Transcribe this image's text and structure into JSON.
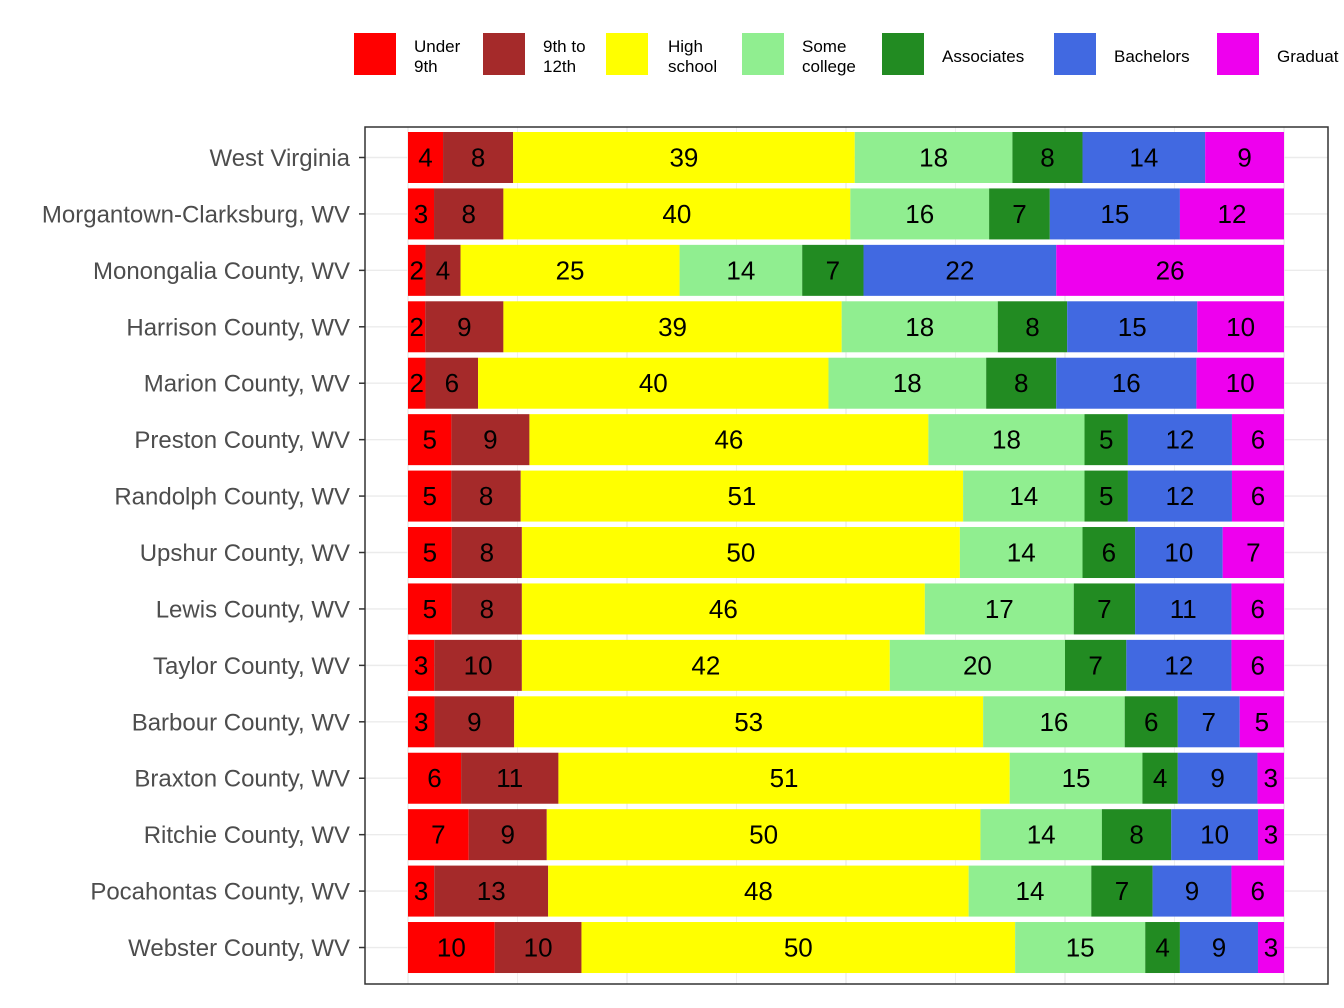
{
  "chart_data": {
    "type": "bar",
    "orientation": "horizontal",
    "stacked": true,
    "grid": true,
    "legend_position": "top",
    "categories": [
      "West Virginia",
      "Morgantown-Clarksburg, WV",
      "Monongalia County, WV",
      "Harrison County, WV",
      "Marion County, WV",
      "Preston County, WV",
      "Randolph County, WV",
      "Upshur County, WV",
      "Lewis County, WV",
      "Taylor County, WV",
      "Barbour County, WV",
      "Braxton County, WV",
      "Ritchie County, WV",
      "Pocahontas County, WV",
      "Webster County, WV"
    ],
    "series": [
      {
        "name": "Under 9th",
        "label_lines": [
          "Under",
          "9th"
        ],
        "color": "#ff0000",
        "values": [
          4,
          3,
          2,
          2,
          2,
          5,
          5,
          5,
          5,
          3,
          3,
          6,
          7,
          3,
          10
        ]
      },
      {
        "name": "9th to 12th",
        "label_lines": [
          "9th to",
          "12th"
        ],
        "color": "#a52a2a",
        "values": [
          8,
          8,
          4,
          9,
          6,
          9,
          8,
          8,
          8,
          10,
          9,
          11,
          9,
          13,
          10
        ]
      },
      {
        "name": "High school",
        "label_lines": [
          "High",
          "school"
        ],
        "color": "#ffff00",
        "values": [
          39,
          40,
          25,
          39,
          40,
          46,
          51,
          50,
          46,
          42,
          53,
          51,
          50,
          48,
          50
        ]
      },
      {
        "name": "Some college",
        "label_lines": [
          "Some",
          "college"
        ],
        "color": "#90ee90",
        "values": [
          18,
          16,
          14,
          18,
          18,
          18,
          14,
          14,
          17,
          20,
          16,
          15,
          14,
          14,
          15
        ]
      },
      {
        "name": "Associates",
        "label_lines": [
          "Associates"
        ],
        "color": "#228b22",
        "values": [
          8,
          7,
          7,
          8,
          8,
          5,
          5,
          6,
          7,
          7,
          6,
          4,
          8,
          7,
          4
        ]
      },
      {
        "name": "Bachelors",
        "label_lines": [
          "Bachelors"
        ],
        "color": "#4169e1",
        "values": [
          14,
          15,
          22,
          15,
          16,
          12,
          12,
          10,
          11,
          12,
          7,
          9,
          10,
          9,
          9
        ]
      },
      {
        "name": "Graduate",
        "label_lines": [
          "Graduat"
        ],
        "color": "#ee00ee",
        "values": [
          9,
          12,
          26,
          10,
          10,
          6,
          6,
          7,
          6,
          6,
          5,
          3,
          3,
          6,
          3
        ]
      }
    ]
  }
}
